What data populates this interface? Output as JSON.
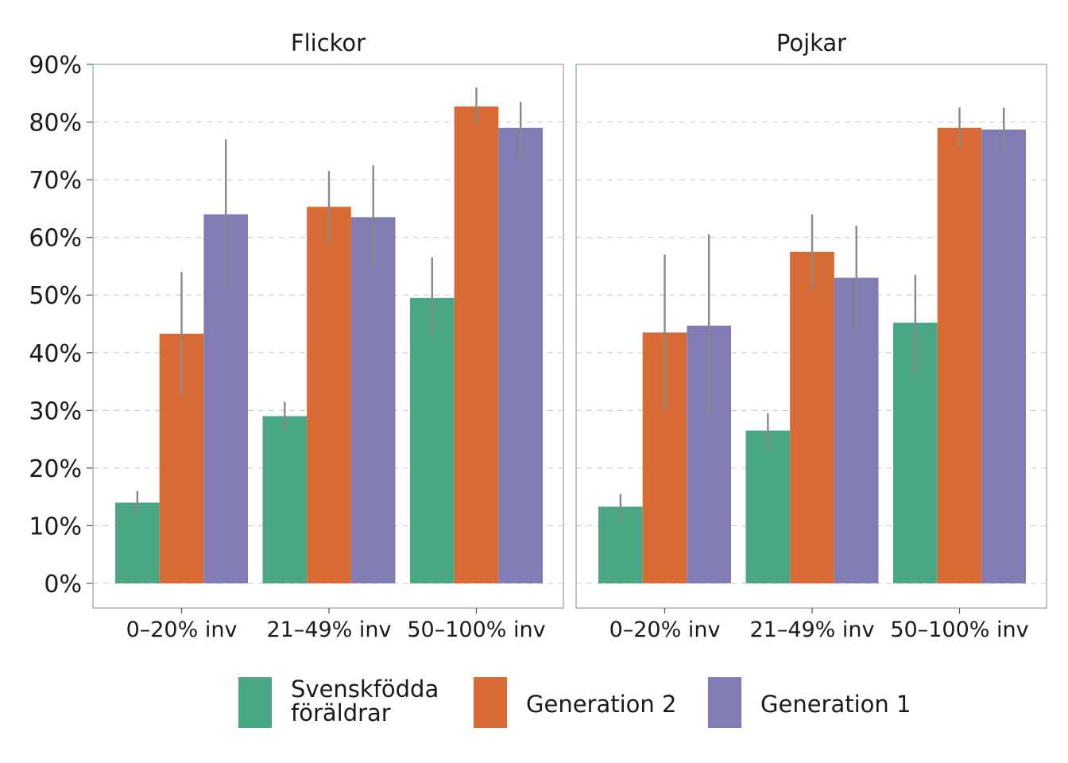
{
  "chart_data": {
    "type": "bar",
    "title": "",
    "xlabel": "",
    "ylabel": "",
    "ylim": [
      0,
      90
    ],
    "y_ticks": [
      "0%",
      "10%",
      "20%",
      "30%",
      "40%",
      "50%",
      "60%",
      "70%",
      "80%",
      "90%"
    ],
    "y_tick_values": [
      0,
      10,
      20,
      30,
      40,
      50,
      60,
      70,
      80,
      90
    ],
    "grid": "horizontal dashed",
    "legend_position": "bottom",
    "categories": [
      "0–20% inv",
      "21–49% inv",
      "50–100% inv"
    ],
    "series_names": [
      "Svenskfödda föräldrar",
      "Generation 2",
      "Generation 1"
    ],
    "legend_lines": [
      [
        "Svenskfödda",
        "föräldrar"
      ],
      [
        "Generation 2"
      ],
      [
        "Generation 1"
      ]
    ],
    "colors": [
      "#4aa783",
      "#d86a36",
      "#817cb4"
    ],
    "error_bar_color": "#888888",
    "facets": [
      {
        "title": "Flickor",
        "series": [
          {
            "name": "Svenskfödda föräldrar",
            "values": [
              14,
              29,
              49.5
            ],
            "err_low": [
              12,
              26.5,
              42.5
            ],
            "err_high": [
              16,
              31.5,
              56.5
            ]
          },
          {
            "name": "Generation 2",
            "values": [
              43.3,
              65.3,
              82.7
            ],
            "err_low": [
              32.5,
              59,
              79.5
            ],
            "err_high": [
              54,
              71.5,
              86
            ]
          },
          {
            "name": "Generation 1",
            "values": [
              64,
              63.5,
              79
            ],
            "err_low": [
              51,
              54.5,
              74
            ],
            "err_high": [
              77,
              72.5,
              83.5
            ]
          }
        ]
      },
      {
        "title": "Pojkar",
        "series": [
          {
            "name": "Svenskfödda föräldrar",
            "values": [
              13.3,
              26.5,
              45.2
            ],
            "err_low": [
              11,
              23.5,
              36.5
            ],
            "err_high": [
              15.5,
              29.5,
              53.5
            ]
          },
          {
            "name": "Generation 2",
            "values": [
              43.5,
              57.5,
              79
            ],
            "err_low": [
              30,
              51,
              75
            ],
            "err_high": [
              57,
              64,
              82.5
            ]
          },
          {
            "name": "Generation 1",
            "values": [
              44.7,
              53,
              78.7
            ],
            "err_low": [
              29,
              44,
              74.5
            ],
            "err_high": [
              60.5,
              62,
              82.5
            ]
          }
        ]
      }
    ]
  }
}
